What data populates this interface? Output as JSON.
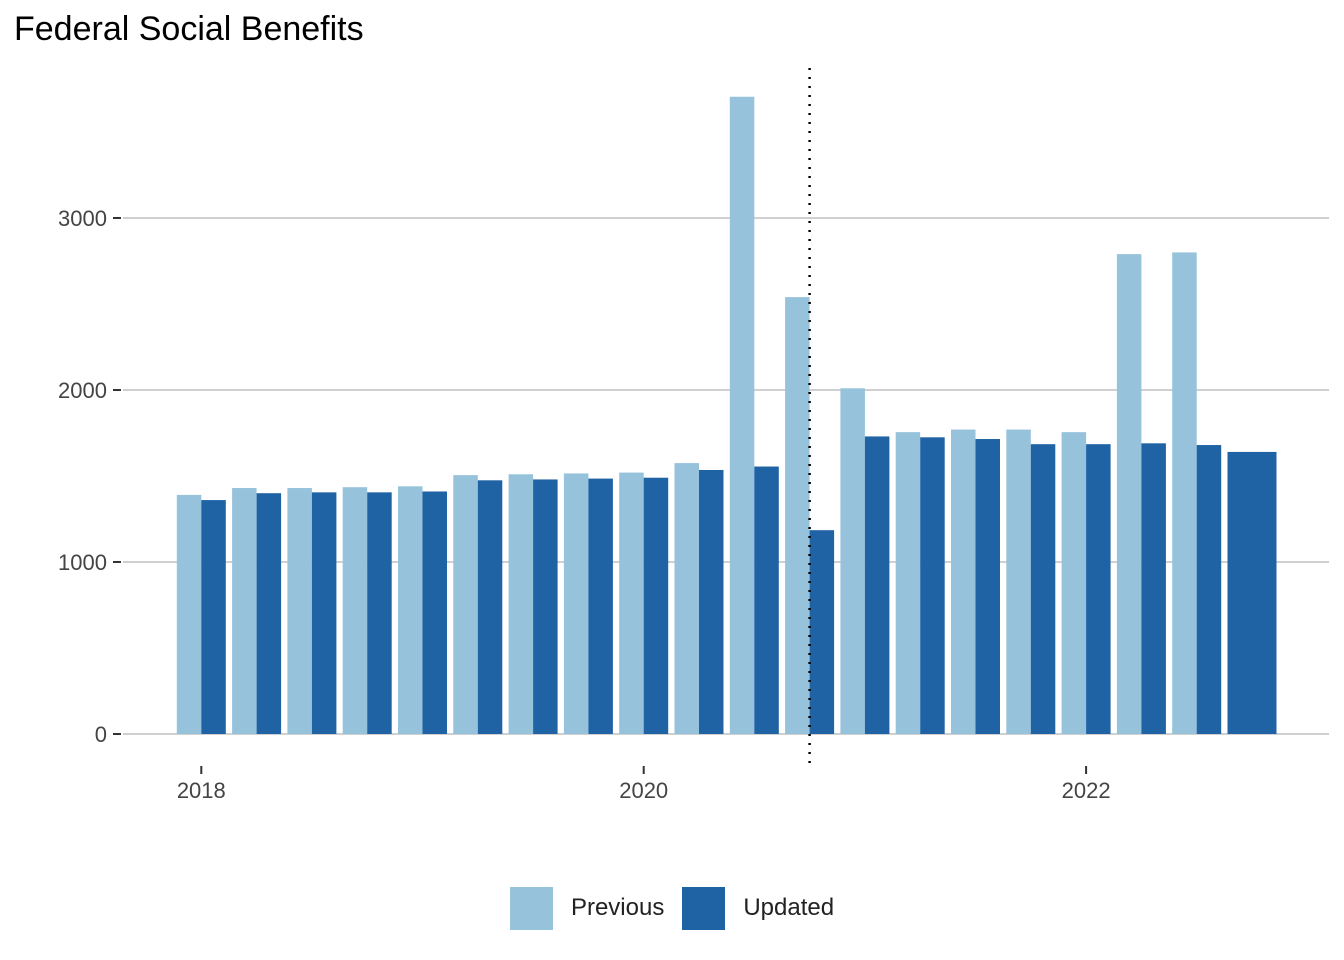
{
  "title": "Federal Social Benefits",
  "chart_data": {
    "type": "bar",
    "title": "Federal Social Benefits",
    "xlabel": "",
    "ylabel": "",
    "x_ticks": [
      "2018",
      "2020",
      "2022"
    ],
    "y_ticks": [
      0,
      1000,
      2000,
      3000
    ],
    "ylim": [
      0,
      3800
    ],
    "grid": "horizontal major gridlines",
    "legend_position": "bottom",
    "reference_line": {
      "style": "dotted",
      "x": "2020-Q4"
    },
    "categories": [
      "2018-Q1",
      "2018-Q2",
      "2018-Q3",
      "2018-Q4",
      "2019-Q1",
      "2019-Q2",
      "2019-Q3",
      "2019-Q4",
      "2020-Q1",
      "2020-Q2",
      "2020-Q3",
      "2020-Q4",
      "2021-Q1",
      "2021-Q2",
      "2021-Q3",
      "2021-Q4",
      "2022-Q1",
      "2022-Q2",
      "2022-Q3",
      "2022-Q4"
    ],
    "series": [
      {
        "name": "Previous",
        "color": "#97c2db",
        "values": [
          1390,
          1430,
          1430,
          1435,
          1440,
          1505,
          1510,
          1515,
          1520,
          1575,
          3705,
          2540,
          2010,
          1755,
          1770,
          1770,
          1755,
          2790,
          2800,
          null
        ]
      },
      {
        "name": "Updated",
        "color": "#1f63a5",
        "values": [
          1360,
          1400,
          1405,
          1405,
          1410,
          1475,
          1480,
          1485,
          1490,
          1535,
          1555,
          1185,
          1730,
          1725,
          1715,
          1685,
          1685,
          1690,
          1680,
          1640
        ]
      }
    ]
  }
}
